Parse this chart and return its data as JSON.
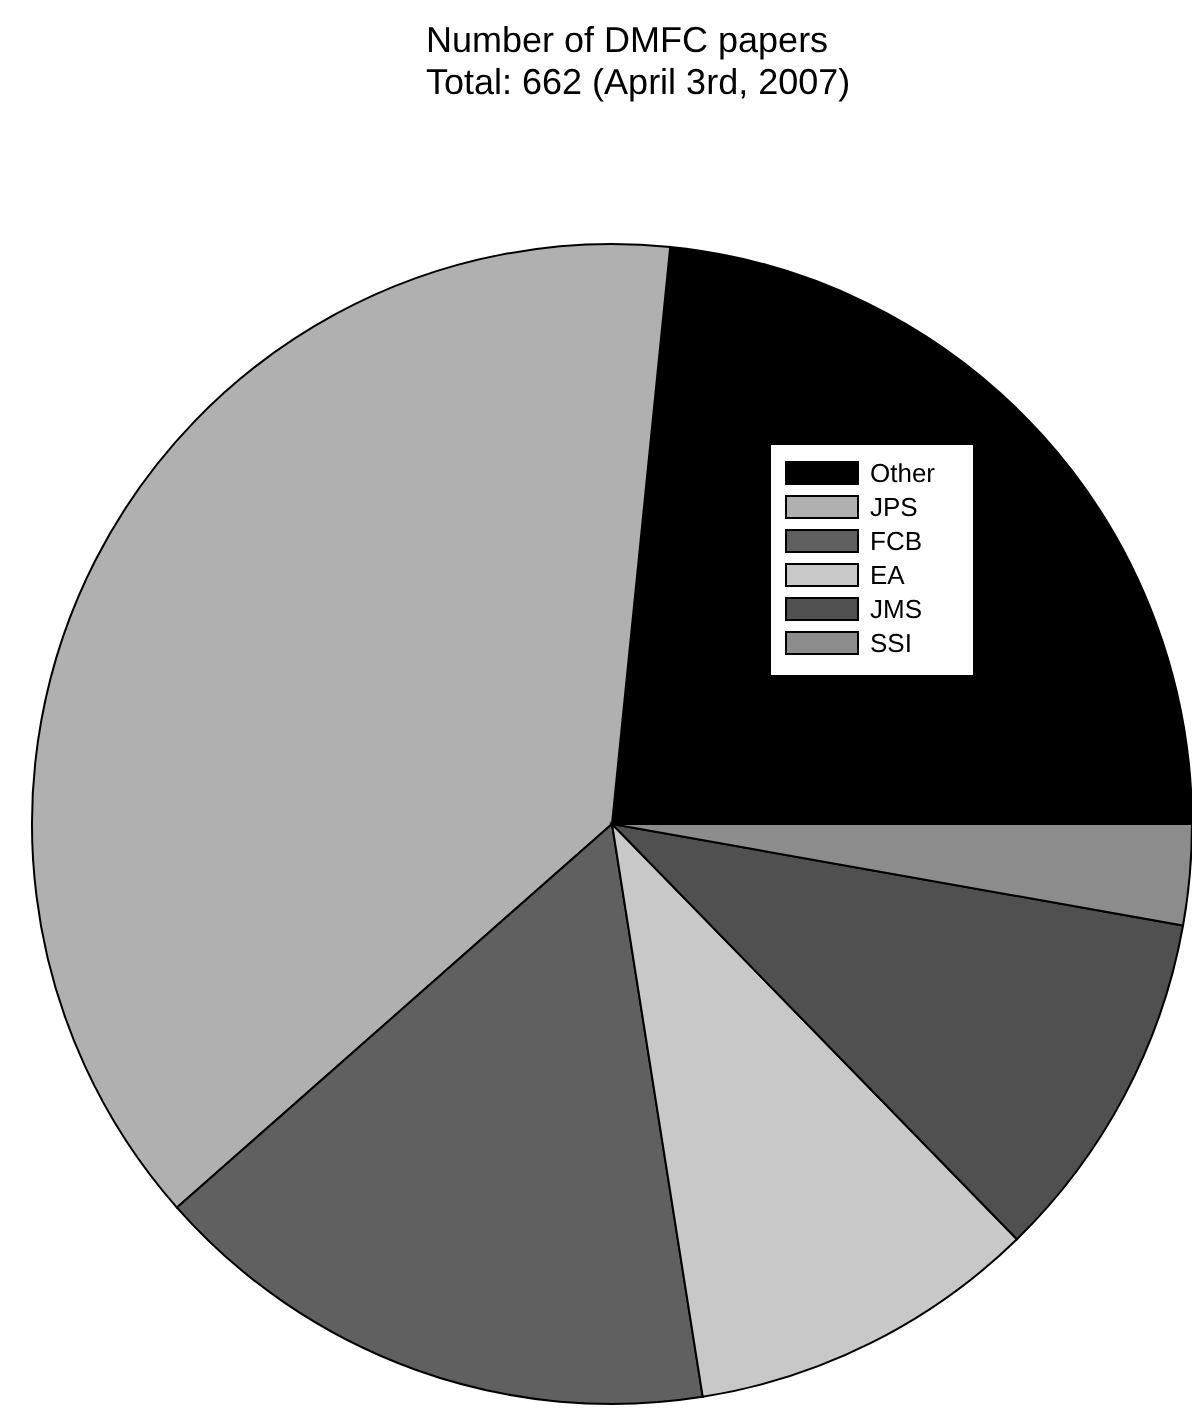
{
  "chart_data": {
    "type": "pie",
    "title": "Number of DMFC papers",
    "subtitle": "Total: 662 (April 3rd, 2007)",
    "categories": [
      "Other",
      "JPS",
      "FCB",
      "EA",
      "JMS",
      "SSI"
    ],
    "values": [
      23.4,
      38.1,
      16.0,
      9.8,
      9.9,
      2.8
    ],
    "colors": [
      "#000000",
      "#b0b0b0",
      "#606060",
      "#c8c8c8",
      "#505050",
      "#8c8c8c"
    ],
    "legend": "top right"
  }
}
